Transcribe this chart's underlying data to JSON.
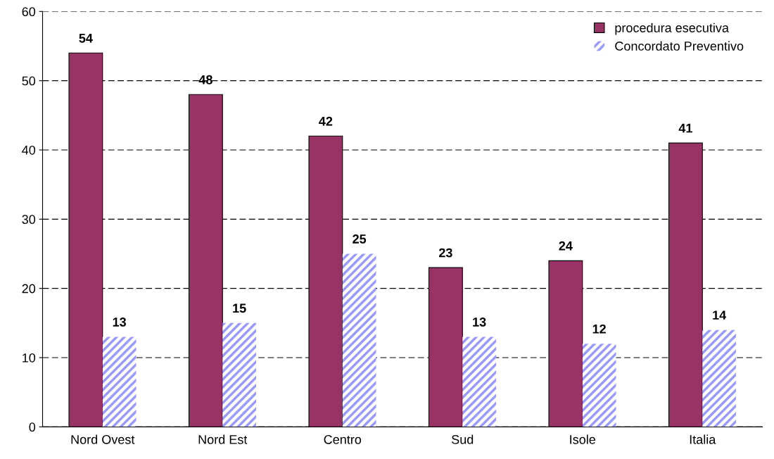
{
  "chart_data": {
    "type": "bar",
    "categories": [
      "Nord Ovest",
      "Nord Est",
      "Centro",
      "Sud",
      "Isole",
      "Italia"
    ],
    "series": [
      {
        "name": "procedura esecutiva",
        "color": "#993366",
        "values": [
          54,
          48,
          42,
          23,
          24,
          41
        ]
      },
      {
        "name": "Concordato Preventivo",
        "color": "#9999ff",
        "values": [
          13,
          15,
          25,
          13,
          12,
          14
        ]
      }
    ],
    "ylim": [
      0,
      60
    ],
    "yticks": [
      0,
      10,
      20,
      30,
      40,
      50,
      60
    ],
    "grid": "y",
    "legend": "top right",
    "data_labels": true
  }
}
